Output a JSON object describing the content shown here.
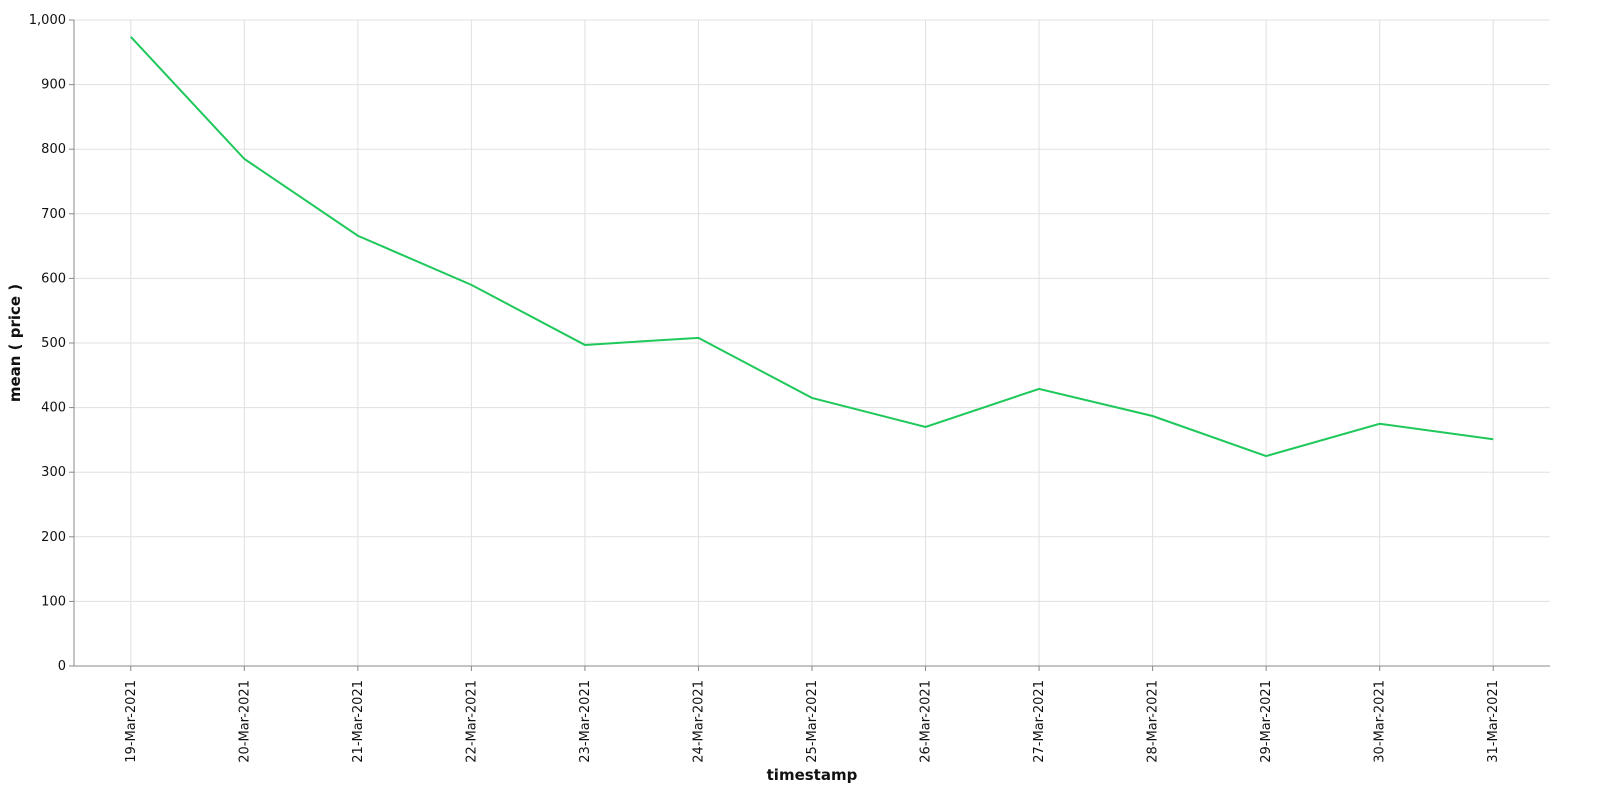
{
  "chart_data": {
    "type": "line",
    "x_label": "timestamp",
    "y_label": "mean ( price )",
    "categories": [
      "19-Mar-2021",
      "20-Mar-2021",
      "21-Mar-2021",
      "22-Mar-2021",
      "23-Mar-2021",
      "24-Mar-2021",
      "25-Mar-2021",
      "26-Mar-2021",
      "27-Mar-2021",
      "28-Mar-2021",
      "29-Mar-2021",
      "30-Mar-2021",
      "31-Mar-2021"
    ],
    "values": [
      974,
      785,
      666,
      590,
      497,
      508,
      415,
      370,
      429,
      387,
      325,
      375,
      351
    ],
    "color": "#1ec85a",
    "ylim": [
      0,
      1000
    ],
    "yticks": [
      0,
      100,
      200,
      300,
      400,
      500,
      600,
      700,
      800,
      900,
      {
        "value": 1000,
        "label": "1,000"
      }
    ],
    "grid": true
  }
}
